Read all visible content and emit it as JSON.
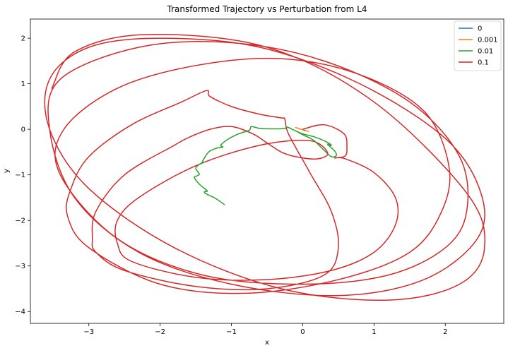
{
  "chart_data": {
    "type": "line",
    "title": "Transformed Trajectory vs Perturbation from L4",
    "xlabel": "x",
    "ylabel": "y",
    "xlim": [
      -3.82,
      2.82
    ],
    "ylim": [
      -4.26,
      2.42
    ],
    "xticks": [
      -3,
      -2,
      -1,
      0,
      1,
      2
    ],
    "yticks": [
      -4,
      -3,
      -2,
      -1,
      0,
      1,
      2
    ],
    "xtick_labels": [
      "−3",
      "−2",
      "−1",
      "0",
      "1",
      "2"
    ],
    "ytick_labels": [
      "−4",
      "−3",
      "−2",
      "−1",
      "0",
      "1",
      "2"
    ],
    "grid": false,
    "legend_position": "top-right",
    "series": [
      {
        "name": "0",
        "color": "#1f77b4",
        "x": [
          0.02,
          0.03
        ],
        "y": [
          -0.02,
          -0.025
        ]
      },
      {
        "name": "0.001",
        "color": "#ff7f0e",
        "x": [
          -0.1,
          -0.04,
          0.02,
          0.07,
          0.08
        ],
        "y": [
          0.04,
          0.01,
          -0.02,
          -0.04,
          -0.05
        ]
      },
      {
        "name": "0.01",
        "color": "#2ca02c",
        "x": [
          -1.1,
          -1.22,
          -1.35,
          -1.38,
          -1.34,
          -1.44,
          -1.52,
          -1.48,
          -1.45,
          -1.5,
          -1.42,
          -1.38,
          -1.41,
          -1.32,
          -1.22,
          -1.12,
          -1.15,
          -1.05,
          -0.9,
          -0.75,
          -0.72,
          -0.6,
          -0.4,
          -0.25,
          -0.22,
          -0.12,
          0.0,
          0.15,
          0.3,
          0.38,
          0.4,
          0.35,
          0.45,
          0.47,
          0.4,
          0.3,
          0.15,
          0.0,
          -0.08
        ],
        "y": [
          -1.65,
          -1.52,
          -1.42,
          -1.37,
          -1.35,
          -1.22,
          -1.06,
          -1.02,
          -0.98,
          -0.85,
          -0.74,
          -0.72,
          -0.72,
          -0.5,
          -0.42,
          -0.39,
          -0.35,
          -0.22,
          -0.1,
          -0.02,
          0.06,
          0.02,
          0.01,
          0.02,
          0.05,
          -0.02,
          -0.1,
          -0.16,
          -0.25,
          -0.32,
          -0.36,
          -0.33,
          -0.48,
          -0.58,
          -0.6,
          -0.46,
          -0.24,
          -0.12,
          -0.05
        ]
      },
      {
        "name": "0.1",
        "color": "#d62728",
        "x": [
          0.0,
          0.3,
          0.58,
          0.62,
          0.6,
          0.5,
          0.45,
          0.6,
          1.0,
          1.3,
          1.3,
          1.0,
          0.4,
          -0.5,
          -1.5,
          -2.4,
          -2.6,
          -2.6,
          -2.3,
          -1.5,
          -0.6,
          0.1,
          0.35,
          0.2,
          -0.1,
          -0.3,
          -0.5,
          -0.7,
          -1.0,
          -1.3,
          -1.6,
          -1.8,
          -2.5,
          -2.9,
          -2.95,
          -2.9,
          -2.5,
          -1.5,
          -0.5,
          0.3,
          0.5,
          0.4,
          0.1,
          -0.2,
          -0.25,
          -0.3,
          -0.6,
          -1.0,
          -1.3,
          -1.35,
          -1.7,
          -2.4,
          -3.0,
          -3.25,
          -3.3,
          -3.0,
          -2.0,
          -0.8,
          0.5,
          1.5,
          1.95,
          2.05,
          1.7,
          0.8,
          -0.3,
          -1.5,
          -2.6,
          -3.35,
          -3.4,
          -2.6,
          -1.4,
          0.0,
          1.2,
          2.0,
          2.3,
          2.2,
          1.5,
          0.3,
          -1.0,
          -2.3,
          -3.4,
          -3.55,
          -3.2,
          -2.3,
          -1.0,
          0.5,
          1.7,
          2.45,
          2.5,
          2.0,
          0.8,
          -0.6,
          -2.0,
          -3.0,
          -3.55,
          -3.55,
          -3.0,
          -1.8,
          -0.3,
          1.2,
          2.2,
          2.55,
          2.3,
          1.0,
          -0.5,
          -2.2,
          -3.2,
          -3.52
        ],
        "y": [
          0.0,
          0.1,
          -0.1,
          -0.4,
          -0.58,
          -0.62,
          -0.63,
          -0.65,
          -0.95,
          -1.5,
          -2.1,
          -2.7,
          -3.1,
          -3.3,
          -3.25,
          -2.9,
          -2.5,
          -2.0,
          -1.5,
          -0.8,
          -0.35,
          -0.25,
          -0.52,
          -0.65,
          -0.6,
          -0.5,
          -0.3,
          -0.1,
          0.06,
          0.0,
          -0.18,
          -0.35,
          -1.0,
          -1.8,
          -2.4,
          -2.7,
          -3.1,
          -3.45,
          -3.5,
          -3.2,
          -2.6,
          -1.8,
          -0.95,
          -0.1,
          0.22,
          0.25,
          0.33,
          0.5,
          0.72,
          0.85,
          0.6,
          0.1,
          -0.6,
          -1.3,
          -1.9,
          -2.6,
          -3.4,
          -3.6,
          -3.3,
          -2.7,
          -1.8,
          -0.8,
          0.4,
          1.2,
          1.55,
          1.4,
          0.9,
          0.0,
          -1.0,
          -2.4,
          -3.2,
          -3.4,
          -3.2,
          -2.6,
          -1.8,
          -0.6,
          0.6,
          1.5,
          1.9,
          1.8,
          1.1,
          0.0,
          -1.5,
          -2.7,
          -3.4,
          -3.65,
          -3.3,
          -2.4,
          -1.4,
          -0.2,
          1.0,
          1.8,
          2.0,
          1.8,
          1.1,
          0.0,
          -1.3,
          -2.6,
          -3.5,
          -3.75,
          -3.4,
          -2.6,
          -1.4,
          0.6,
          1.8,
          2.08,
          1.7,
          0.9
        ]
      }
    ]
  }
}
